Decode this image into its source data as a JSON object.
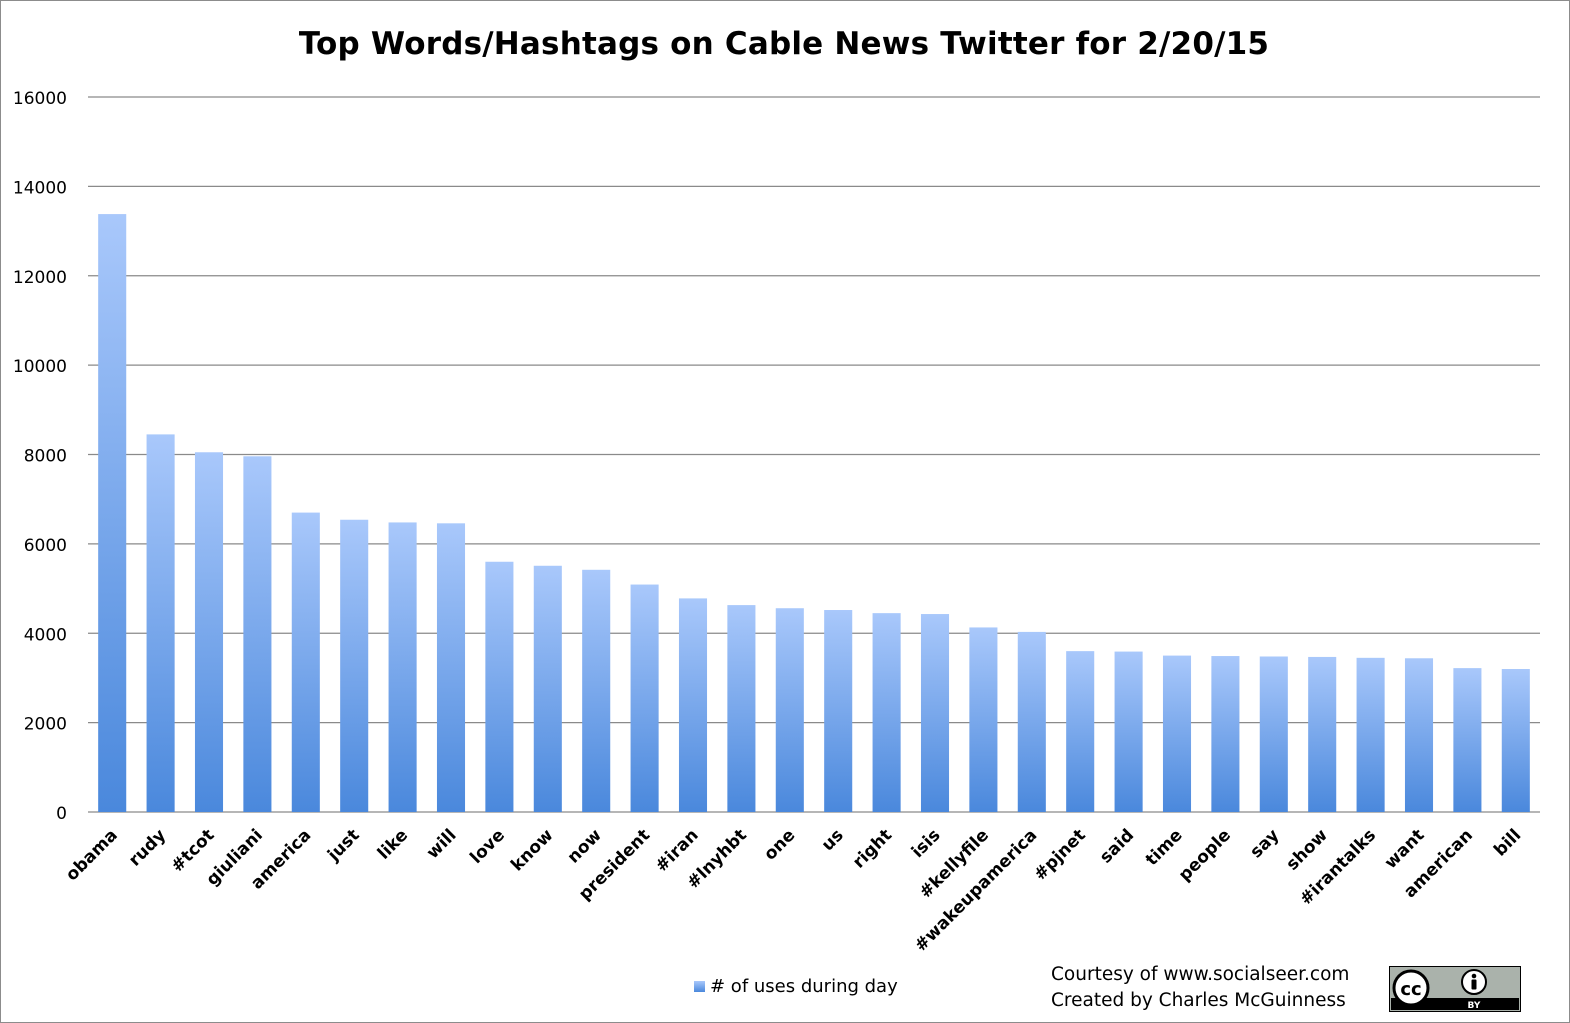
{
  "chart_data": {
    "type": "bar",
    "title": "Top Words/Hashtags on Cable News Twitter for 2/20/15",
    "categories": [
      "obama",
      "rudy",
      "#tcot",
      "giuliani",
      "america",
      "just",
      "like",
      "will",
      "love",
      "know",
      "now",
      "president",
      "#iran",
      "#lnyhbt",
      "one",
      "us",
      "right",
      "isis",
      "#kellyfile",
      "#wakeupamerica",
      "#pjnet",
      "said",
      "time",
      "people",
      "say",
      "show",
      "#irantalks",
      "want",
      "american",
      "bill"
    ],
    "series": [
      {
        "name": "# of uses during day",
        "values": [
          13380,
          8450,
          8050,
          7960,
          6700,
          6540,
          6480,
          6460,
          5600,
          5510,
          5420,
          5090,
          4780,
          4630,
          4560,
          4520,
          4450,
          4430,
          4130,
          4030,
          3600,
          3590,
          3500,
          3490,
          3480,
          3470,
          3450,
          3440,
          3220,
          3200
        ]
      }
    ],
    "ylim": [
      0,
      16000
    ],
    "yticks": [
      "0",
      "2000",
      "4000",
      "6000",
      "8000",
      "10000",
      "12000",
      "14000",
      "16000"
    ],
    "grid": true,
    "legend_position": "bottom-center",
    "bar_color_top": "#a9c8fb",
    "bar_color_bottom": "#4a88dc"
  },
  "credits": {
    "line1": "Courtesy of www.socialseer.com",
    "line2": "Created by Charles McGuinness"
  },
  "badge": {
    "icon": "creative-commons-by-icon",
    "cc_text": "cc",
    "by_text": "BY"
  }
}
